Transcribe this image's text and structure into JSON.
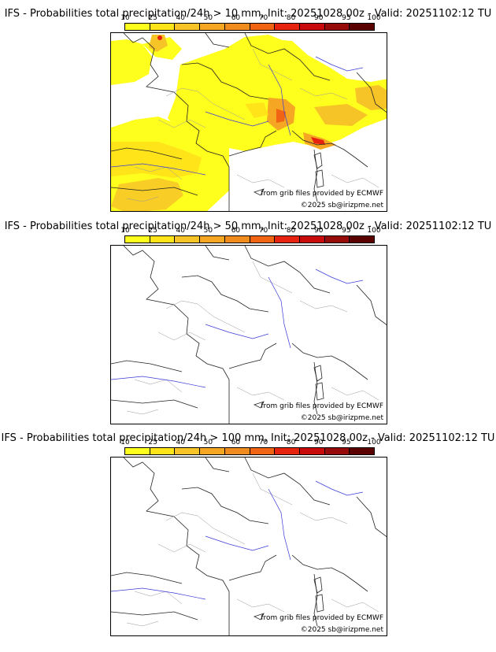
{
  "colorbar": {
    "ticks": [
      "10",
      "25",
      "40",
      "50",
      "60",
      "70",
      "80",
      "90",
      "95",
      "100"
    ],
    "colors": [
      "#ffff1e",
      "#ffe41a",
      "#f7c428",
      "#f5a623",
      "#f08c1e",
      "#f06414",
      "#e6230f",
      "#c80a0a",
      "#960a0a",
      "#5a0000"
    ]
  },
  "panels": [
    {
      "title": "IFS - Probabilities total precipitation/24h > 10 mm, Init: 20251028 00z - Valid: 20251102:12 TU",
      "source_note": "from grib files provided by ECMWF",
      "copyright": "©2025 sb@irizpme.net",
      "has_precip_overlay": true
    },
    {
      "title": "IFS - Probabilities total precipitation/24h > 50 mm, Init: 20251028 00z - Valid: 20251102:12 TU",
      "source_note": "from grib files provided by ECMWF",
      "copyright": "©2025 sb@irizpme.net",
      "has_precip_overlay": false
    },
    {
      "title": "IFS - Probabilities total precipitation/24h > 100 mm, Init: 20251028 00z - Valid: 20251102:12 TU",
      "source_note": "from grib files provided by ECMWF",
      "copyright": "©2025 sb@irizpme.net",
      "has_precip_overlay": false
    }
  ]
}
